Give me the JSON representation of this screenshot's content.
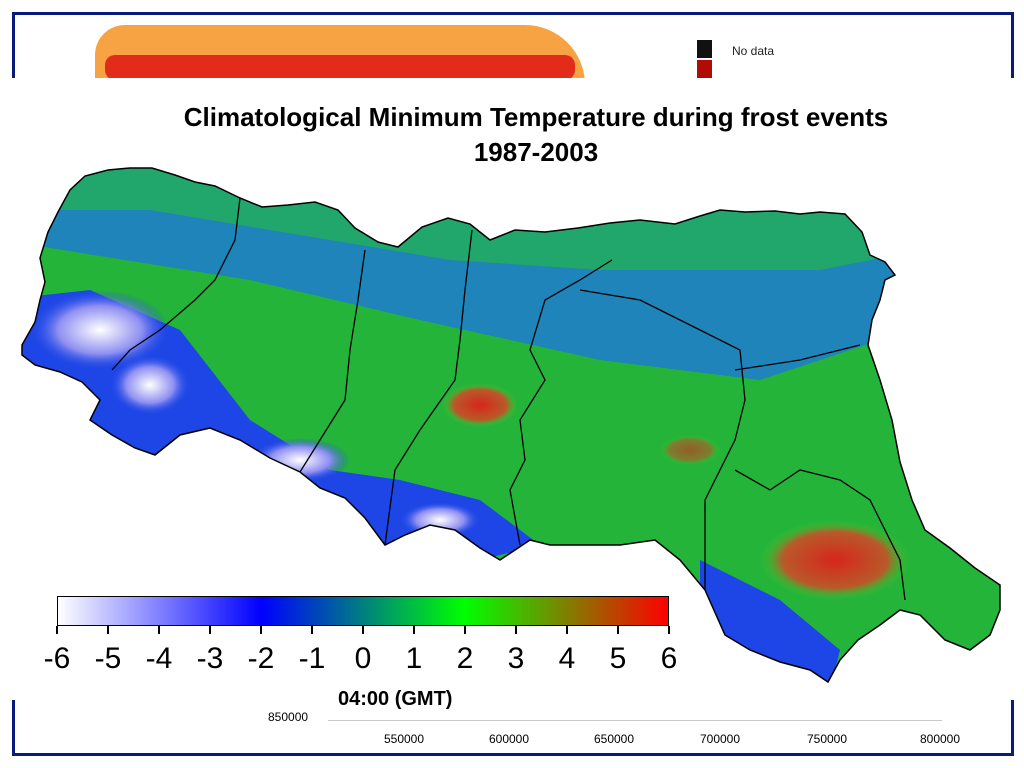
{
  "background_slide": {
    "legend": {
      "no_data_label": "No data",
      "colors": {
        "no_data": "#111111",
        "high": "#b10b06"
      }
    },
    "time_label": "04:00 (GMT)",
    "y_axis_label": "850000",
    "x_axis_labels": [
      "550000",
      "600000",
      "650000",
      "700000",
      "750000",
      "800000"
    ]
  },
  "map": {
    "title": "Climatological Minimum Temperature during frost events 1987-2003"
  },
  "colorbar": {
    "ticks": [
      "-6",
      "-5",
      "-4",
      "-3",
      "-2",
      "-1",
      "0",
      "1",
      "2",
      "3",
      "4",
      "5",
      "6"
    ],
    "min": -6,
    "max": 6,
    "colors": [
      "#ffffff",
      "#0000ff",
      "#00ff00",
      "#ff0000"
    ]
  },
  "colors": {
    "frame": "#0a1a7a",
    "cold_peaks": "#ffffff",
    "cold": "#1e46e6",
    "mild": "#25c93a",
    "plain": "#34d22a",
    "warm": "#d7261b",
    "border": "#000000"
  }
}
